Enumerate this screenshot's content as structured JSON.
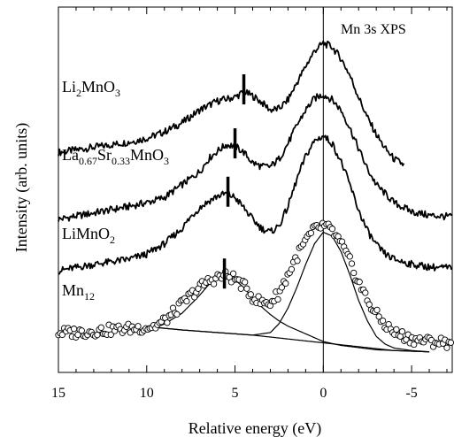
{
  "chart_data": {
    "type": "line",
    "title": "Mn 3s XPS",
    "xlabel": "Relative energy (eV)",
    "ylabel": "Intensity (arb. units)",
    "xlim": [
      15,
      -7.3
    ],
    "x_reversed": true,
    "x_ticks": [
      15,
      10,
      5,
      0,
      -5
    ],
    "x_tick_labels": [
      "15",
      "10",
      "5",
      "0",
      "-5"
    ],
    "reference_line_x": 0,
    "series": [
      {
        "name": "Li2MnO3",
        "label_main": "Li",
        "label_parts": [
          [
            "Li",
            ""
          ],
          [
            "2",
            "sub"
          ],
          [
            "MnO",
            ""
          ],
          [
            "3",
            "sub"
          ]
        ],
        "x": [
          15,
          13,
          11,
          10,
          9,
          8,
          7,
          6,
          5,
          4.5,
          4,
          3.5,
          3,
          2.5,
          2,
          1.5,
          1,
          0.5,
          0,
          -0.5,
          -1,
          -1.5,
          -2,
          -2.5,
          -3,
          -3.5,
          -4,
          -4.6
        ],
        "y": [
          4.95,
          5.15,
          5.35,
          5.5,
          5.75,
          6.1,
          6.6,
          6.95,
          7.1,
          7.3,
          7.15,
          6.9,
          6.6,
          6.65,
          7.0,
          7.65,
          8.3,
          8.9,
          9.2,
          9.05,
          8.6,
          7.95,
          7.1,
          6.3,
          5.65,
          5.1,
          4.7,
          4.45
        ],
        "marker_x": 4.5
      },
      {
        "name": "La0.67Sr0.33MnO3",
        "label_parts": [
          [
            "La",
            ""
          ],
          [
            "0.67",
            "sub"
          ],
          [
            "Sr",
            ""
          ],
          [
            "0.33",
            "sub"
          ],
          [
            "MnO",
            ""
          ],
          [
            "3",
            "sub"
          ]
        ],
        "x": [
          15,
          13,
          11,
          10,
          9,
          8,
          7,
          6.5,
          6,
          5.5,
          5,
          4.5,
          4,
          3.5,
          3,
          2.5,
          2,
          1.5,
          1,
          0.5,
          0,
          -0.5,
          -1,
          -1.5,
          -2,
          -2.5,
          -3,
          -4,
          -5,
          -6,
          -7.3
        ],
        "y": [
          2.35,
          2.6,
          2.85,
          3.0,
          3.2,
          3.7,
          4.2,
          4.7,
          5.0,
          5.25,
          5.2,
          4.95,
          4.55,
          4.4,
          4.4,
          4.7,
          5.3,
          6.0,
          6.6,
          7.05,
          7.2,
          7.0,
          6.6,
          5.9,
          5.1,
          4.3,
          3.7,
          3.0,
          2.65,
          2.5,
          2.45
        ],
        "marker_x": 5
      },
      {
        "name": "LiMnO2",
        "label_parts": [
          [
            "LiMnO",
            ""
          ],
          [
            "2",
            "sub"
          ]
        ],
        "x": [
          15,
          13,
          11,
          10,
          9,
          8,
          7.5,
          7,
          6.5,
          6,
          5.5,
          5,
          4.5,
          4,
          3.5,
          3,
          2.5,
          2,
          1.5,
          1,
          0.5,
          0,
          -0.5,
          -1,
          -1.5,
          -2,
          -2.5,
          -3,
          -3.5,
          -4,
          -5,
          -6,
          -7.3
        ],
        "y": [
          0.35,
          0.6,
          0.8,
          1.0,
          1.4,
          2.0,
          2.45,
          2.8,
          3.05,
          3.25,
          3.35,
          3.2,
          2.8,
          2.35,
          2.0,
          1.85,
          2.1,
          2.85,
          3.9,
          4.8,
          5.4,
          5.6,
          5.3,
          4.6,
          3.7,
          2.7,
          1.9,
          1.35,
          1.0,
          0.8,
          0.6,
          0.5,
          0.45
        ],
        "marker_x": 5.4
      },
      {
        "name": "Mn12",
        "label_parts": [
          [
            "Mn",
            ""
          ],
          [
            "12",
            "sub"
          ]
        ],
        "style": "markers",
        "x": [
          15,
          14,
          13,
          12,
          11,
          10,
          9.5,
          9,
          8.5,
          8,
          7.5,
          7,
          6.5,
          6,
          5.5,
          5,
          4.5,
          4,
          3.5,
          3,
          2.5,
          2,
          1.5,
          1,
          0.5,
          0,
          -0.5,
          -1,
          -1.5,
          -2,
          -2.5,
          -3,
          -3.5,
          -4,
          -5,
          -6,
          -7.3
        ],
        "y": [
          -2.05,
          -2.05,
          -2.0,
          -1.95,
          -1.9,
          -1.85,
          -1.8,
          -1.6,
          -1.3,
          -0.95,
          -0.6,
          -0.3,
          -0.05,
          0.1,
          0.15,
          0.05,
          -0.25,
          -0.65,
          -0.9,
          -0.9,
          -0.5,
          0.2,
          0.9,
          1.5,
          1.95,
          2.1,
          1.9,
          1.4,
          0.7,
          -0.1,
          -0.8,
          -1.35,
          -1.75,
          -2.05,
          -2.3,
          -2.4,
          -2.45
        ],
        "marker_x": 5.6
      }
    ],
    "fit_curves": [
      {
        "name": "background",
        "x": [
          9.5,
          8,
          6,
          4,
          2,
          0,
          -2,
          -4,
          -6
        ],
        "y": [
          -1.85,
          -1.95,
          -2.05,
          -2.15,
          -2.3,
          -2.45,
          -2.6,
          -2.75,
          -2.8
        ]
      },
      {
        "name": "satellite peak",
        "x": [
          9.5,
          9,
          8,
          7,
          6.5,
          6,
          5.5,
          5,
          4.5,
          4,
          3.5,
          3,
          2.5,
          2,
          1,
          0,
          -1,
          -3,
          -6
        ],
        "y": [
          -1.85,
          -1.72,
          -1.3,
          -0.6,
          -0.2,
          0.05,
          0.12,
          0.0,
          -0.3,
          -0.7,
          -1.05,
          -1.35,
          -1.6,
          -1.8,
          -2.1,
          -2.4,
          -2.55,
          -2.72,
          -2.8
        ]
      },
      {
        "name": "main peak",
        "x": [
          9.5,
          8,
          6,
          4,
          3,
          2.5,
          2,
          1.5,
          1,
          0.5,
          0,
          -0.5,
          -1,
          -1.5,
          -2,
          -2.5,
          -3,
          -3.5,
          -4,
          -5,
          -6
        ],
        "y": [
          -1.85,
          -1.95,
          -2.05,
          -2.15,
          -2.05,
          -1.7,
          -1.1,
          -0.3,
          0.6,
          1.4,
          1.85,
          1.7,
          1.1,
          0.2,
          -0.8,
          -1.6,
          -2.2,
          -2.5,
          -2.65,
          -2.75,
          -2.8
        ]
      }
    ]
  }
}
